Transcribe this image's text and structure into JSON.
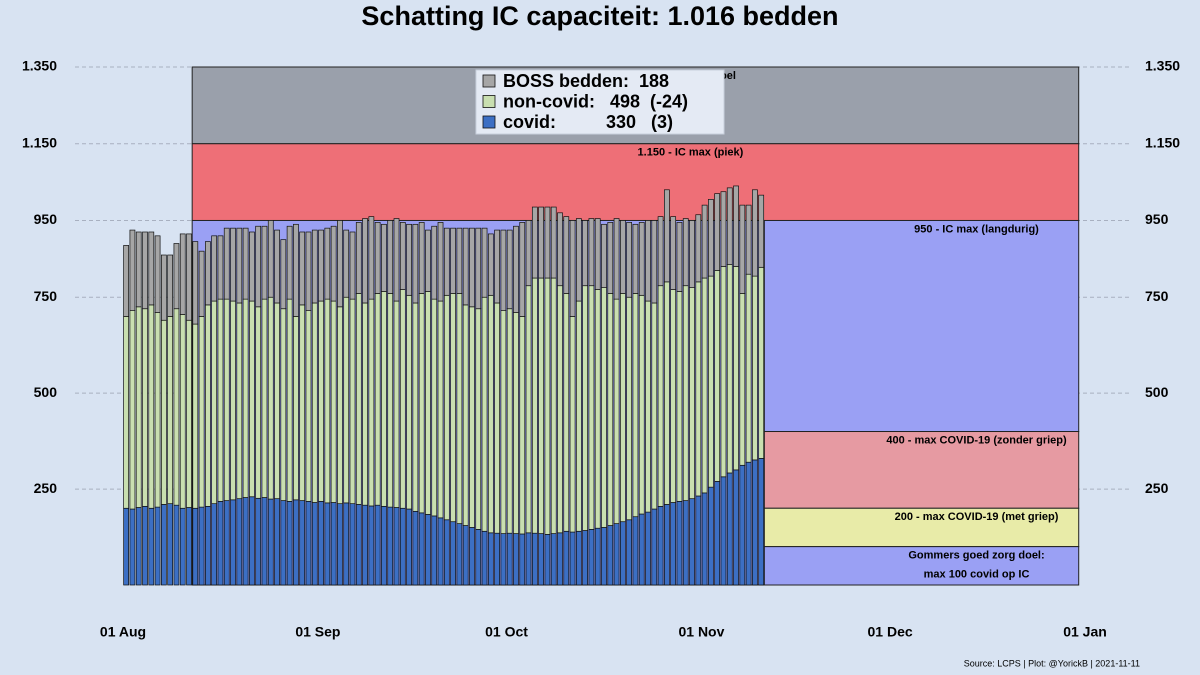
{
  "chart_data": {
    "type": "stacked_bar",
    "title": "Schatting IC capaciteit: 1.016 bedden",
    "source": "Source: LCPS | Plot: @YorickB |  2021-11-11",
    "ylim": [
      0,
      1350
    ],
    "yticks": [
      {
        "value": 1350,
        "label": "1.350"
      },
      {
        "value": 1150,
        "label": "1.150"
      },
      950,
      750,
      500,
      250
    ],
    "xlim": [
      "08-01",
      "01-01"
    ],
    "xticks": [
      {
        "value": "08-01",
        "label": "01 Aug"
      },
      {
        "value": "09-01",
        "label": "01 Sep"
      },
      {
        "value": "10-01",
        "label": "01 Oct"
      },
      {
        "value": "11-01",
        "label": "01 Nov"
      },
      {
        "value": "12-01",
        "label": "01 Dec"
      },
      {
        "value": "01-01",
        "label": "01 Jan"
      }
    ],
    "grid": true,
    "bands": [
      {
        "label": "1.350 - Hugo doel",
        "from": 1150,
        "to": 1350,
        "start": "08-12",
        "end": "12-31",
        "color": "#9aa0ab"
      },
      {
        "label": "1.150 - IC max (piek)",
        "from": 950,
        "to": 1150,
        "start": "08-12",
        "end": "12-31",
        "color": "#ee6f77"
      },
      {
        "from": 0,
        "to": 950,
        "start": "08-12",
        "end": "11-11",
        "color": "#9aa0f4"
      },
      {
        "label": "950 - IC max (langdurig)",
        "from": 400,
        "to": 950,
        "start": "11-11",
        "end": "12-31",
        "color": "#9aa0f4"
      },
      {
        "label": "400 - max COVID-19 (zonder griep)",
        "from": 200,
        "to": 400,
        "start": "11-11",
        "end": "12-31",
        "color": "#e69aa2"
      },
      {
        "label": "200 - max COVID-19 (met griep)",
        "from": 100,
        "to": 200,
        "start": "11-11",
        "end": "12-31",
        "color": "#e8eba8"
      },
      {
        "label": [
          "Gommers goed zorg doel:",
          "max 100 covid op IC"
        ],
        "from": 0,
        "to": 100,
        "start": "11-11",
        "end": "12-31",
        "color": "#9aa0f4"
      }
    ],
    "x": [
      "08-01",
      "08-02",
      "08-03",
      "08-04",
      "08-05",
      "08-06",
      "08-07",
      "08-08",
      "08-09",
      "08-10",
      "08-11",
      "08-12",
      "08-13",
      "08-14",
      "08-15",
      "08-16",
      "08-17",
      "08-18",
      "08-19",
      "08-20",
      "08-21",
      "08-22",
      "08-23",
      "08-24",
      "08-25",
      "08-26",
      "08-27",
      "08-28",
      "08-29",
      "08-30",
      "08-31",
      "09-01",
      "09-02",
      "09-03",
      "09-04",
      "09-05",
      "09-06",
      "09-07",
      "09-08",
      "09-09",
      "09-10",
      "09-11",
      "09-12",
      "09-13",
      "09-14",
      "09-15",
      "09-16",
      "09-17",
      "09-18",
      "09-19",
      "09-20",
      "09-21",
      "09-22",
      "09-23",
      "09-24",
      "09-25",
      "09-26",
      "09-27",
      "09-28",
      "09-29",
      "09-30",
      "10-01",
      "10-02",
      "10-03",
      "10-04",
      "10-05",
      "10-06",
      "10-07",
      "10-08",
      "10-09",
      "10-10",
      "10-11",
      "10-12",
      "10-13",
      "10-14",
      "10-15",
      "10-16",
      "10-17",
      "10-18",
      "10-19",
      "10-20",
      "10-21",
      "10-22",
      "10-23",
      "10-24",
      "10-25",
      "10-26",
      "10-27",
      "10-28",
      "10-29",
      "10-30",
      "10-31",
      "11-01",
      "11-02",
      "11-03",
      "11-04",
      "11-05",
      "11-06",
      "11-07",
      "11-08",
      "11-09",
      "11-10"
    ],
    "series": [
      {
        "name": "covid:          330   (3)",
        "color": "#3c6fc4",
        "values": [
          200,
          198,
          202,
          205,
          200,
          203,
          210,
          212,
          208,
          200,
          202,
          200,
          203,
          205,
          212,
          218,
          220,
          222,
          225,
          228,
          230,
          226,
          228,
          224,
          225,
          220,
          218,
          222,
          220,
          218,
          215,
          218,
          214,
          215,
          212,
          214,
          212,
          210,
          208,
          206,
          208,
          205,
          203,
          202,
          200,
          198,
          192,
          188,
          184,
          180,
          175,
          170,
          165,
          160,
          155,
          150,
          145,
          140,
          136,
          135,
          134,
          135,
          134,
          133,
          136,
          135,
          134,
          132,
          134,
          136,
          140,
          138,
          140,
          142,
          145,
          148,
          150,
          155,
          160,
          165,
          170,
          178,
          185,
          190,
          198,
          205,
          210,
          215,
          218,
          220,
          225,
          232,
          240,
          255,
          270,
          282,
          292,
          300,
          312,
          320,
          326,
          330
        ]
      },
      {
        "name": "non-covid:   498  (-24)",
        "color": "#c9dfb0",
        "values": [
          500,
          517,
          523,
          515,
          530,
          507,
          480,
          488,
          512,
          505,
          488,
          480,
          497,
          525,
          528,
          527,
          525,
          518,
          510,
          517,
          510,
          499,
          517,
          526,
          510,
          500,
          527,
          478,
          510,
          497,
          520,
          522,
          531,
          525,
          513,
          536,
          533,
          550,
          527,
          539,
          552,
          560,
          557,
          538,
          570,
          557,
          543,
          572,
          581,
          565,
          565,
          585,
          595,
          600,
          575,
          575,
          575,
          610,
          619,
          600,
          581,
          585,
          576,
          567,
          644,
          665,
          666,
          668,
          666,
          644,
          620,
          562,
          600,
          638,
          635,
          622,
          625,
          605,
          585,
          595,
          580,
          582,
          570,
          550,
          537,
          575,
          580,
          555,
          547,
          560,
          550,
          558,
          560,
          550,
          550,
          548,
          543,
          530,
          448,
          490,
          479,
          498
        ]
      },
      {
        "name": "BOSS bedden:  188",
        "color": "#a6a6a6",
        "values": [
          185,
          210,
          195,
          200,
          190,
          200,
          170,
          160,
          170,
          210,
          225,
          215,
          170,
          165,
          170,
          165,
          185,
          190,
          195,
          185,
          180,
          210,
          190,
          200,
          190,
          180,
          190,
          240,
          190,
          205,
          190,
          185,
          185,
          195,
          225,
          175,
          175,
          185,
          220,
          215,
          185,
          175,
          190,
          215,
          175,
          185,
          205,
          185,
          160,
          190,
          205,
          175,
          170,
          170,
          200,
          205,
          210,
          180,
          160,
          190,
          210,
          205,
          225,
          245,
          170,
          185,
          185,
          185,
          185,
          190,
          200,
          250,
          215,
          170,
          175,
          185,
          165,
          185,
          210,
          190,
          195,
          180,
          190,
          210,
          215,
          180,
          240,
          190,
          180,
          175,
          175,
          175,
          190,
          200,
          200,
          195,
          200,
          210,
          230,
          180,
          225,
          188
        ]
      }
    ]
  }
}
